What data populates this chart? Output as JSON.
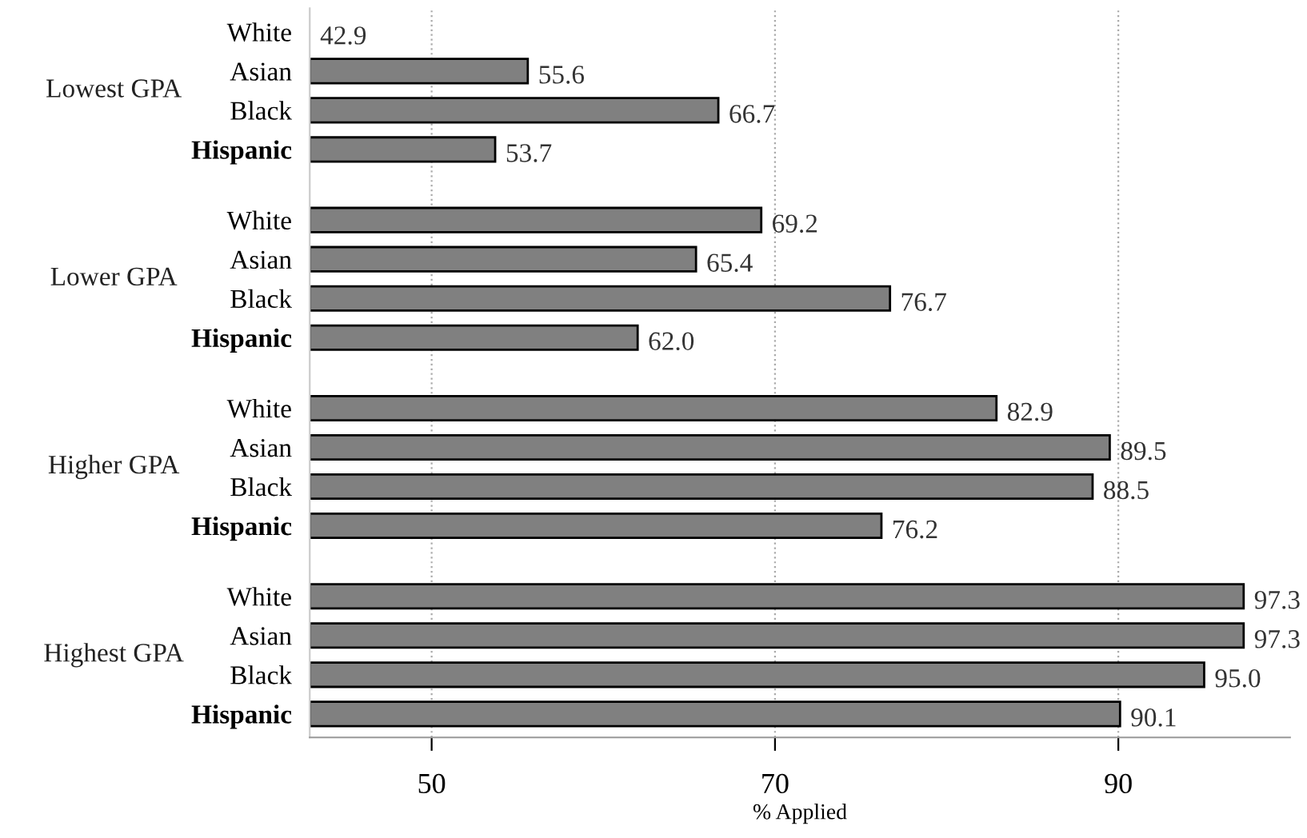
{
  "chart_data": {
    "type": "bar",
    "orientation": "horizontal",
    "xlabel": "% Applied",
    "categories": [
      "White",
      "Asian",
      "Black",
      "Hispanic",
      "White",
      "Asian",
      "Black",
      "Hispanic",
      "White",
      "Asian",
      "Black",
      "Hispanic",
      "White",
      "Asian",
      "Black",
      "Hispanic"
    ],
    "values": [
      42.9,
      55.6,
      66.7,
      53.7,
      69.2,
      65.4,
      76.7,
      62.0,
      82.9,
      89.5,
      88.5,
      76.2,
      97.3,
      97.3,
      95.0,
      90.1
    ],
    "value_labels": [
      "42.9",
      "55.6",
      "66.7",
      "53.7",
      "69.2",
      "65.4",
      "76.7",
      "62.0",
      "82.9",
      "89.5",
      "88.5",
      "76.2",
      "97.3",
      "97.3",
      "95.0",
      "90.1"
    ],
    "color": "#808080",
    "annotations": [
      "Lowest GPA",
      "Lower GPA",
      "Higher GPA",
      "Highest GPA"
    ],
    "xlim": [
      42.9,
      100
    ],
    "xticks": [
      50,
      70,
      90
    ],
    "grid": "x"
  }
}
